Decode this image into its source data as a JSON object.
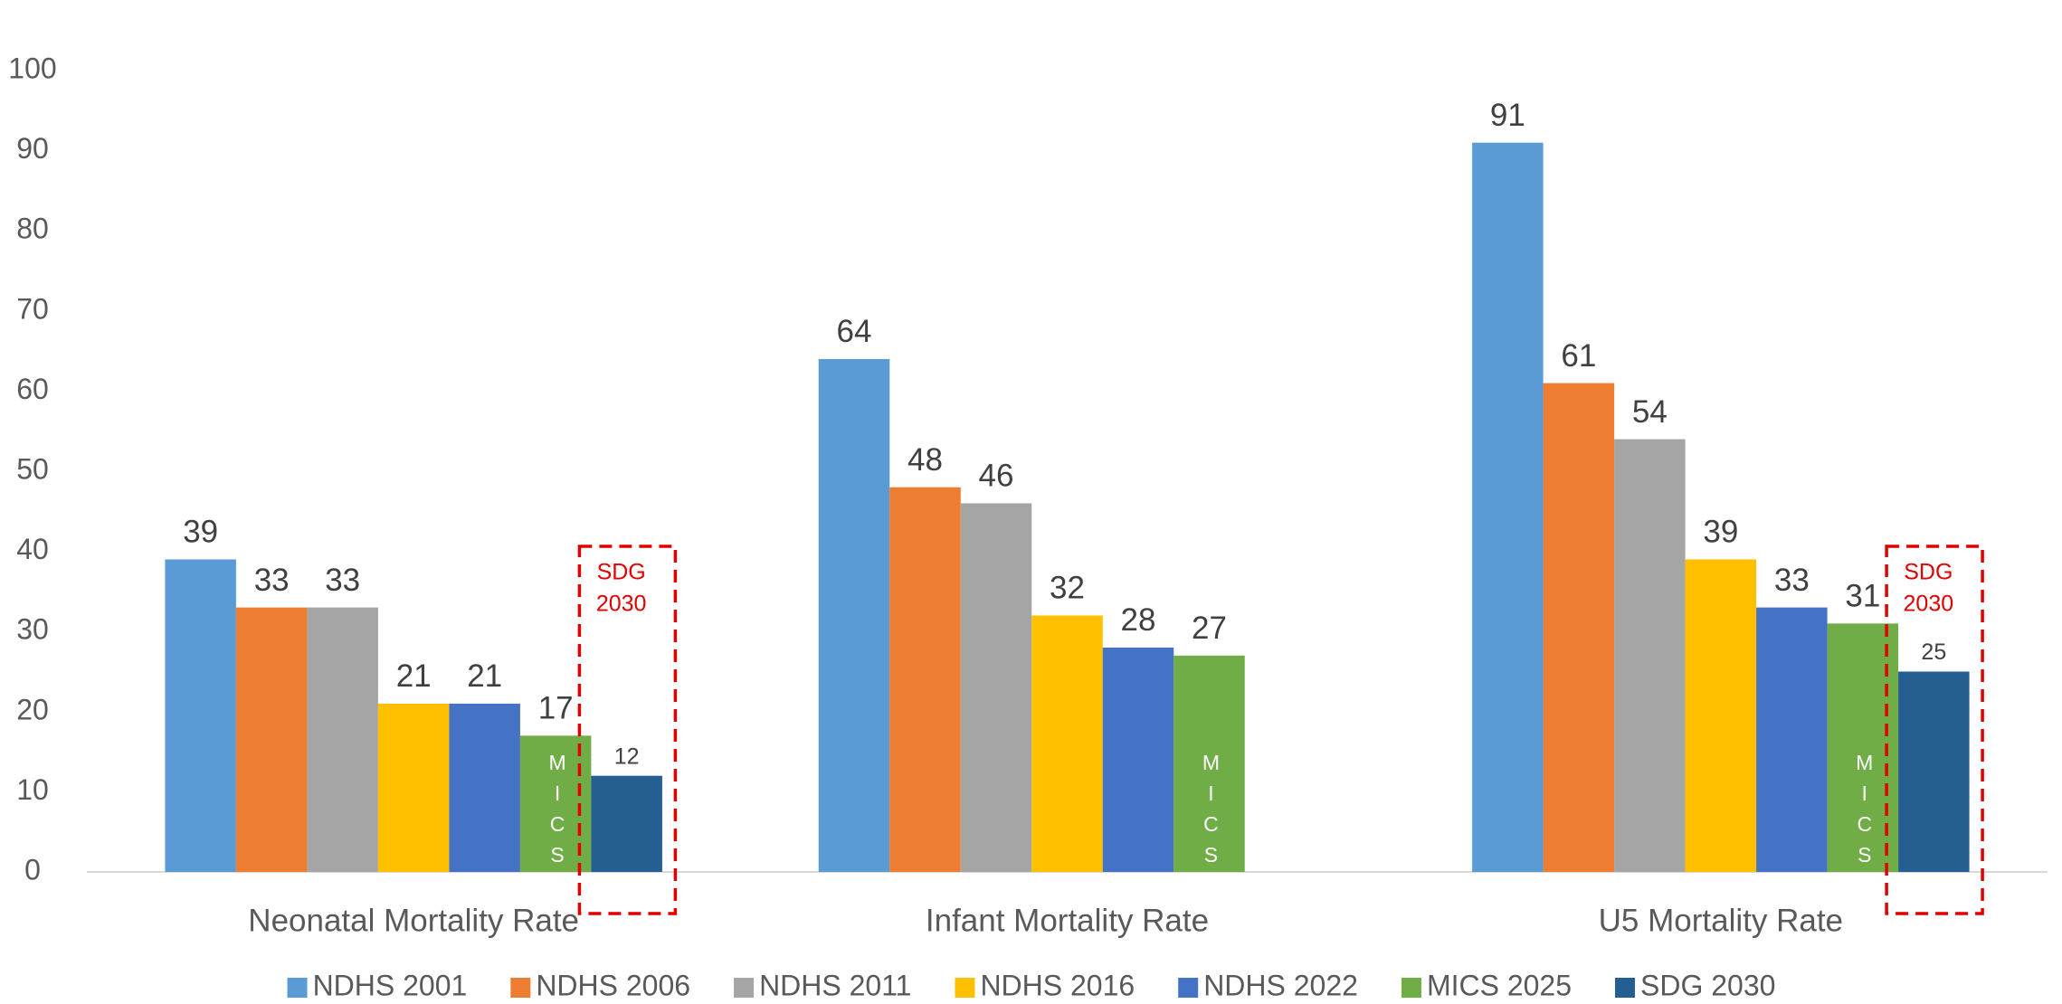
{
  "chart_data": {
    "type": "bar",
    "categories": [
      "Neonatal Mortality Rate",
      "Infant Mortality Rate",
      "U5 Mortality Rate"
    ],
    "series": [
      {
        "name": "NDHS 2001",
        "color": "#5b9bd5",
        "values": [
          39,
          64,
          91
        ]
      },
      {
        "name": "NDHS 2006",
        "color": "#ed7d31",
        "values": [
          33,
          48,
          61
        ]
      },
      {
        "name": "NDHS 2011",
        "color": "#a5a5a5",
        "values": [
          33,
          46,
          54
        ]
      },
      {
        "name": "NDHS 2016",
        "color": "#ffc000",
        "values": [
          21,
          32,
          39
        ]
      },
      {
        "name": "NDHS 2022",
        "color": "#4472c4",
        "values": [
          21,
          28,
          33
        ]
      },
      {
        "name": "MICS 2025",
        "color": "#70ad47",
        "values": [
          17,
          27,
          31
        ]
      },
      {
        "name": "SDG 2030",
        "color": "#255e91",
        "values": [
          12,
          null,
          25
        ]
      }
    ],
    "ylim": [
      0,
      100
    ],
    "yticks": [
      0,
      10,
      20,
      30,
      40,
      50,
      60,
      70,
      80,
      90,
      100
    ],
    "grid": false,
    "legend": "bottom",
    "sdg_label": [
      "SDG",
      "2030"
    ],
    "mics_label": "MICS"
  }
}
